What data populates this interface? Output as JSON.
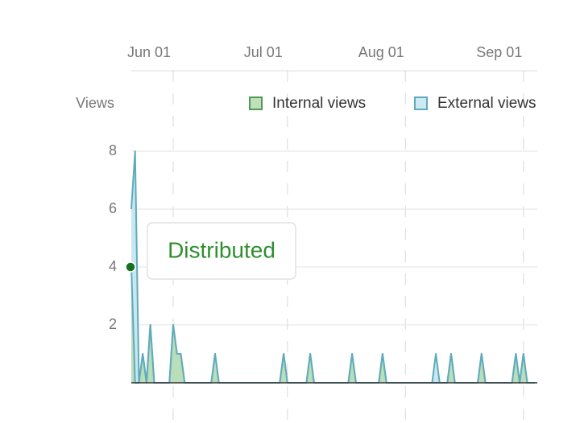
{
  "chart_data": {
    "type": "area",
    "y_label": "Views",
    "x": [
      "05-21",
      "05-22",
      "05-23",
      "05-24",
      "05-25",
      "05-26",
      "05-27",
      "05-31",
      "06-01",
      "06-02",
      "06-03",
      "06-04",
      "06-11",
      "06-12",
      "06-13",
      "06-29",
      "06-30",
      "07-01",
      "07-06",
      "07-07",
      "07-08",
      "07-17",
      "07-18",
      "07-19",
      "07-25",
      "07-26",
      "07-27",
      "08-08",
      "08-09",
      "08-10",
      "08-12",
      "08-13",
      "08-14",
      "08-20",
      "08-21",
      "08-22",
      "08-29",
      "08-30",
      "08-31",
      "09-01",
      "09-02",
      "09-04"
    ],
    "series": [
      {
        "name": "External views",
        "color": "#5fabbd",
        "fill": "#bfe3ee",
        "values": [
          6,
          8,
          0,
          1,
          0,
          2,
          0,
          0,
          2,
          1,
          1,
          0,
          0,
          1,
          0,
          0,
          1,
          0,
          0,
          1,
          0,
          0,
          1,
          0,
          0,
          1,
          0,
          0,
          1,
          0,
          0,
          1,
          0,
          0,
          1,
          0,
          0,
          1,
          0,
          1,
          0,
          0
        ]
      },
      {
        "name": "Internal views",
        "color": "#5fabbd",
        "fill": "#b7dbb0",
        "values": [
          4,
          0,
          0,
          1,
          0,
          2,
          0,
          0,
          2,
          1,
          1,
          0,
          0,
          1,
          0,
          0,
          1,
          0,
          0,
          1,
          0,
          0,
          1,
          0,
          0,
          1,
          0,
          0,
          0,
          0,
          0,
          1,
          0,
          0,
          1,
          0,
          0,
          1,
          0,
          1,
          0,
          0
        ]
      }
    ],
    "legend_order": [
      1,
      0
    ],
    "legend_colors": {
      "Internal views": [
        "#4e9b55",
        "#bfe0b8"
      ],
      "External views": [
        "#5fabbd",
        "#cdeaf3"
      ]
    },
    "xlim": [
      "05-21",
      "09-04"
    ],
    "xticks": [
      {
        "value": "06-01",
        "label": "Jun 01"
      },
      {
        "value": "07-01",
        "label": "Jul 01"
      },
      {
        "value": "08-01",
        "label": "Aug 01"
      },
      {
        "value": "09-01",
        "label": "Sep 01"
      }
    ],
    "ylim": [
      0,
      8
    ],
    "yticks": [
      2,
      4,
      6,
      8
    ],
    "grid": true,
    "annotations": [
      {
        "text": "Distributed",
        "x": "05-21",
        "y": 4,
        "color": "#17701f"
      }
    ]
  }
}
